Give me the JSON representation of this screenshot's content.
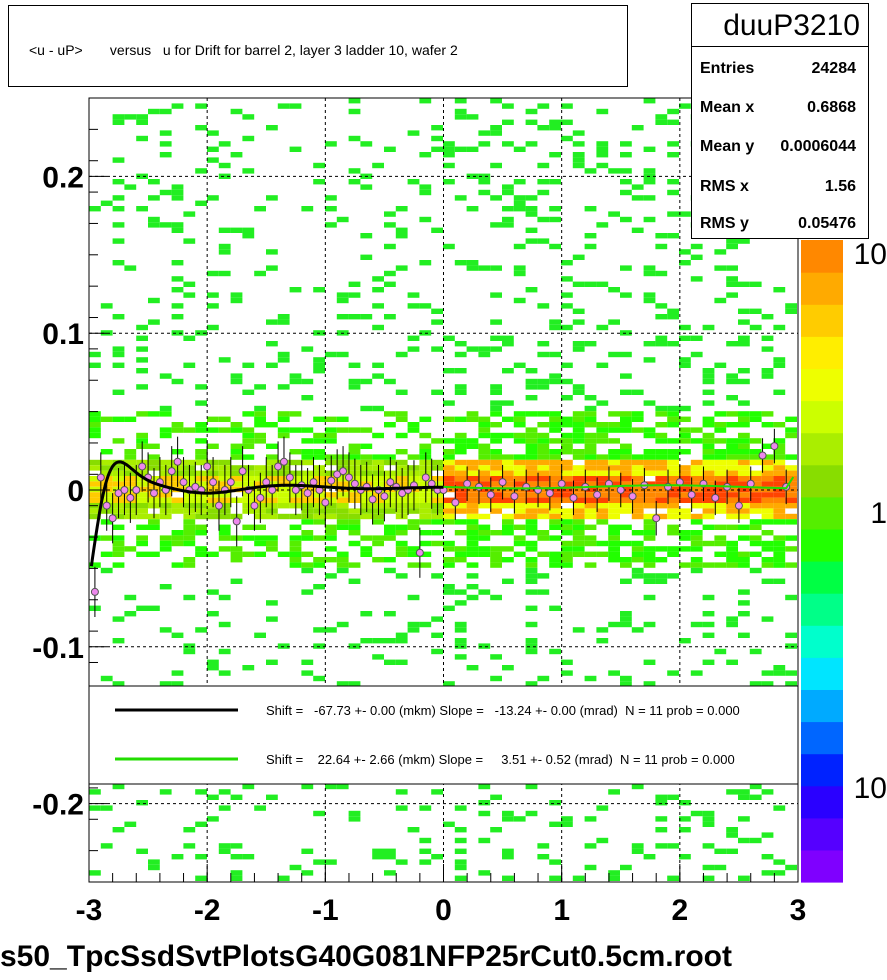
{
  "title": "<u - uP>       versus   u for Drift for barrel 2, layer 3 ladder 10, wafer 2",
  "footer": "s50_TpcSsdSvtPlotsG40G081NFP25rCut0.5cm.root",
  "stats": {
    "name": "duuP3210",
    "rows": [
      {
        "label": "Entries",
        "value": "24284"
      },
      {
        "label": "Mean x",
        "value": "0.6868"
      },
      {
        "label": "Mean y",
        "value": "0.0006044"
      },
      {
        "label": "RMS x",
        "value": "1.56"
      },
      {
        "label": "RMS y",
        "value": "0.05476"
      }
    ]
  },
  "chart_data": {
    "type": "heatmap",
    "xlim": [
      -3,
      3
    ],
    "ylim": [
      -0.25,
      0.25
    ],
    "x_ticks": [
      -3,
      -2,
      -1,
      0,
      1,
      2,
      3
    ],
    "x_tick_labels": [
      "-3",
      "-2",
      "-1",
      "0",
      "1",
      "2",
      "3"
    ],
    "y_ticks": [
      -0.2,
      -0.1,
      0,
      0.1,
      0.2
    ],
    "y_tick_labels": [
      "-0.2",
      "-0.1",
      "0",
      "0.1",
      "0.2"
    ],
    "grid": true,
    "colorbar": {
      "scale": "log",
      "labels": [
        "10",
        "1",
        "10"
      ],
      "colors": [
        "#7f00ff",
        "#5500ff",
        "#2a00ff",
        "#0022ff",
        "#0066ff",
        "#00aaff",
        "#00e5ff",
        "#00ffcc",
        "#00ff88",
        "#00ff44",
        "#22ff00",
        "#55ee00",
        "#88dd00",
        "#aaee00",
        "#ccff00",
        "#eeff00",
        "#ffee00",
        "#ffcc00",
        "#ffaa00",
        "#ff8800"
      ]
    },
    "profile_points": [
      {
        "x": -2.95,
        "y": -0.065
      },
      {
        "x": -2.9,
        "y": 0.008
      },
      {
        "x": -2.85,
        "y": -0.01
      },
      {
        "x": -2.8,
        "y": -0.018
      },
      {
        "x": -2.75,
        "y": -0.002
      },
      {
        "x": -2.7,
        "y": 0.0
      },
      {
        "x": -2.65,
        "y": -0.005
      },
      {
        "x": -2.6,
        "y": 0.0
      },
      {
        "x": -2.55,
        "y": 0.015
      },
      {
        "x": -2.5,
        "y": 0.008
      },
      {
        "x": -2.45,
        "y": -0.002
      },
      {
        "x": -2.4,
        "y": 0.005
      },
      {
        "x": -2.35,
        "y": 0.0
      },
      {
        "x": -2.3,
        "y": 0.012
      },
      {
        "x": -2.25,
        "y": 0.018
      },
      {
        "x": -2.2,
        "y": 0.005
      },
      {
        "x": -2.15,
        "y": 0.0
      },
      {
        "x": -2.1,
        "y": 0.002
      },
      {
        "x": -2.05,
        "y": 0.0
      },
      {
        "x": -2.0,
        "y": 0.015
      },
      {
        "x": -1.95,
        "y": 0.005
      },
      {
        "x": -1.9,
        "y": -0.01
      },
      {
        "x": -1.85,
        "y": 0.0
      },
      {
        "x": -1.8,
        "y": 0.005
      },
      {
        "x": -1.75,
        "y": -0.02
      },
      {
        "x": -1.7,
        "y": 0.012
      },
      {
        "x": -1.65,
        "y": 0.0
      },
      {
        "x": -1.6,
        "y": -0.01
      },
      {
        "x": -1.55,
        "y": -0.005
      },
      {
        "x": -1.5,
        "y": 0.005
      },
      {
        "x": -1.45,
        "y": 0.0
      },
      {
        "x": -1.4,
        "y": 0.015
      },
      {
        "x": -1.35,
        "y": 0.018
      },
      {
        "x": -1.3,
        "y": 0.008
      },
      {
        "x": -1.25,
        "y": 0.0
      },
      {
        "x": -1.2,
        "y": 0.003
      },
      {
        "x": -1.15,
        "y": -0.002
      },
      {
        "x": -1.1,
        "y": 0.005
      },
      {
        "x": -1.05,
        "y": 0.0
      },
      {
        "x": -1.0,
        "y": -0.008
      },
      {
        "x": -0.95,
        "y": 0.006
      },
      {
        "x": -0.9,
        "y": 0.01
      },
      {
        "x": -0.85,
        "y": 0.012
      },
      {
        "x": -0.8,
        "y": 0.008
      },
      {
        "x": -0.75,
        "y": 0.004
      },
      {
        "x": -0.7,
        "y": 0.0
      },
      {
        "x": -0.65,
        "y": 0.002
      },
      {
        "x": -0.6,
        "y": -0.006
      },
      {
        "x": -0.55,
        "y": 0.0
      },
      {
        "x": -0.5,
        "y": -0.004
      },
      {
        "x": -0.45,
        "y": 0.005
      },
      {
        "x": -0.4,
        "y": 0.002
      },
      {
        "x": -0.35,
        "y": -0.002
      },
      {
        "x": -0.3,
        "y": 0.0
      },
      {
        "x": -0.25,
        "y": 0.003
      },
      {
        "x": -0.2,
        "y": -0.04
      },
      {
        "x": -0.15,
        "y": 0.008
      },
      {
        "x": -0.1,
        "y": 0.004
      },
      {
        "x": -0.05,
        "y": 0.0
      },
      {
        "x": 0.0,
        "y": 0.0
      },
      {
        "x": 0.1,
        "y": -0.008
      },
      {
        "x": 0.2,
        "y": 0.004
      },
      {
        "x": 0.3,
        "y": 0.002
      },
      {
        "x": 0.4,
        "y": -0.003
      },
      {
        "x": 0.5,
        "y": 0.005
      },
      {
        "x": 0.6,
        "y": -0.004
      },
      {
        "x": 0.7,
        "y": 0.002
      },
      {
        "x": 0.8,
        "y": 0.0
      },
      {
        "x": 0.9,
        "y": -0.002
      },
      {
        "x": 1.0,
        "y": 0.004
      },
      {
        "x": 1.1,
        "y": -0.005
      },
      {
        "x": 1.2,
        "y": 0.002
      },
      {
        "x": 1.3,
        "y": -0.003
      },
      {
        "x": 1.4,
        "y": 0.004
      },
      {
        "x": 1.5,
        "y": 0.0
      },
      {
        "x": 1.6,
        "y": -0.004
      },
      {
        "x": 1.7,
        "y": 0.003
      },
      {
        "x": 1.8,
        "y": -0.018
      },
      {
        "x": 1.9,
        "y": 0.002
      },
      {
        "x": 2.0,
        "y": 0.005
      },
      {
        "x": 2.1,
        "y": -0.003
      },
      {
        "x": 2.2,
        "y": 0.004
      },
      {
        "x": 2.3,
        "y": -0.005
      },
      {
        "x": 2.4,
        "y": 0.002
      },
      {
        "x": 2.5,
        "y": -0.01
      },
      {
        "x": 2.6,
        "y": 0.004
      },
      {
        "x": 2.7,
        "y": 0.022
      },
      {
        "x": 2.8,
        "y": 0.028
      },
      {
        "x": 2.9,
        "y": 0.002
      }
    ],
    "series": [
      {
        "name": "Shift =   -67.73 +- 0.00 (mkm) Slope =   -13.24 +- 0.00 (mrad)  N = 11 prob = 0.000",
        "color": "#000000"
      },
      {
        "name": "Shift =    22.64 +- 2.66 (mkm) Slope =     3.51 +- 0.52 (mrad)  N = 11 prob = 0.000",
        "color": "#22dd00"
      }
    ]
  }
}
